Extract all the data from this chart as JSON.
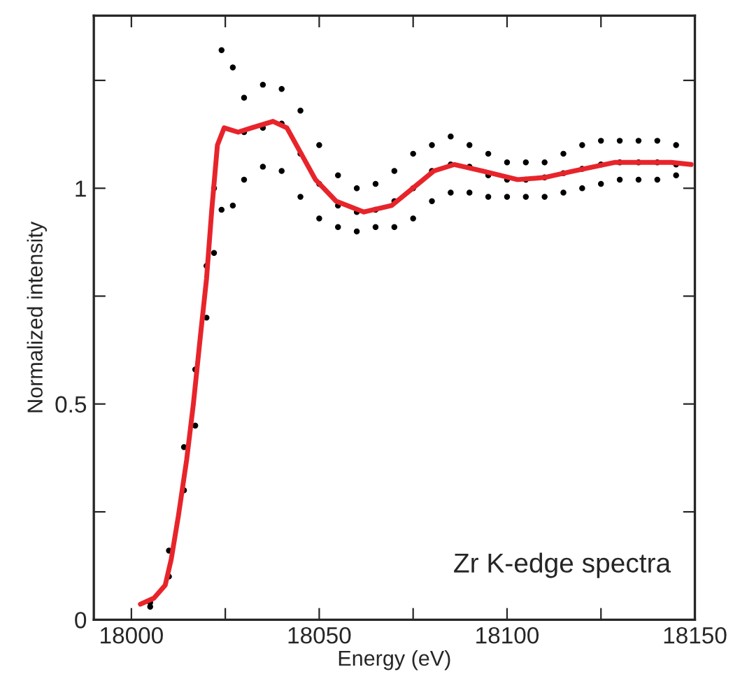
{
  "chart_data": {
    "type": "scatter",
    "xlabel": "Energy (eV)",
    "ylabel": "Normalized intensity",
    "annotations": [
      "Zr K-edge spectra"
    ],
    "xlim": [
      17990,
      18150
    ],
    "ylim": [
      0,
      1.4
    ],
    "xticks": [
      18000,
      {
        "value": 18025,
        "label": null
      },
      18050,
      {
        "value": 18075,
        "label": null
      },
      18100,
      {
        "value": 18125,
        "label": null
      },
      18150
    ],
    "yticks": [
      0,
      {
        "value": 0.25,
        "label": null
      },
      0.5,
      {
        "value": 0.75,
        "label": null
      },
      1,
      {
        "value": 1.25,
        "label": null
      }
    ],
    "grid": false,
    "legend": false,
    "series": [
      {
        "color": "#000000",
        "marker": "circle",
        "x": [
          18005,
          18005,
          18010,
          18010,
          18014,
          18014,
          18017,
          18017,
          18020,
          18020,
          18022,
          18022,
          18024,
          18024,
          18027,
          18027,
          18030,
          18030,
          18030,
          18035,
          18035,
          18035,
          18040,
          18040,
          18040,
          18045,
          18045,
          18045,
          18050,
          18050,
          18050,
          18055,
          18055,
          18055,
          18060,
          18060,
          18060,
          18065,
          18065,
          18065,
          18070,
          18070,
          18070,
          18075,
          18075,
          18075,
          18080,
          18080,
          18080,
          18085,
          18085,
          18085,
          18090,
          18090,
          18090,
          18095,
          18095,
          18095,
          18100,
          18100,
          18100,
          18105,
          18105,
          18105,
          18110,
          18110,
          18110,
          18115,
          18115,
          18115,
          18120,
          18120,
          18120,
          18125,
          18125,
          18125,
          18130,
          18130,
          18130,
          18135,
          18135,
          18135,
          18140,
          18140,
          18140,
          18145,
          18145,
          18145
        ],
        "values": [
          0.04,
          0.03,
          0.16,
          0.1,
          0.4,
          0.3,
          0.58,
          0.45,
          0.82,
          0.7,
          1.0,
          0.85,
          1.32,
          0.95,
          1.28,
          0.96,
          1.21,
          1.02,
          1.13,
          1.24,
          1.05,
          1.14,
          1.23,
          1.04,
          1.15,
          1.18,
          0.98,
          1.08,
          1.1,
          0.93,
          1.01,
          1.03,
          0.91,
          0.96,
          1.0,
          0.9,
          0.945,
          1.01,
          0.91,
          0.95,
          1.04,
          0.91,
          0.97,
          1.08,
          0.93,
          1.0,
          1.1,
          0.97,
          1.04,
          1.12,
          0.99,
          1.055,
          1.1,
          0.99,
          1.05,
          1.08,
          0.98,
          1.03,
          1.06,
          0.98,
          1.02,
          1.06,
          0.98,
          1.02,
          1.06,
          0.98,
          1.025,
          1.08,
          0.99,
          1.035,
          1.1,
          1.0,
          1.045,
          1.11,
          1.01,
          1.055,
          1.11,
          1.02,
          1.06,
          1.11,
          1.02,
          1.06,
          1.11,
          1.02,
          1.06,
          1.1,
          1.03,
          1.055
        ]
      },
      {
        "type": "line",
        "color": "#e8242b",
        "marker": "none",
        "line_style": "solid",
        "x": [
          18002.4,
          18006,
          18009,
          18010.6,
          18012.5,
          18014.7,
          18016.5,
          18018.4,
          18020,
          18021.4,
          18022.9,
          18024.7,
          18028.4,
          18032,
          18037.7,
          18041.4,
          18045.2,
          18049,
          18054.5,
          18061.9,
          18069.3,
          18074.9,
          18080.5,
          18086,
          18093.5,
          18102.8,
          18110,
          18117.7,
          18128.8,
          18143.7,
          18149
        ],
        "values": [
          0.036,
          0.05,
          0.08,
          0.14,
          0.24,
          0.37,
          0.5,
          0.66,
          0.79,
          0.95,
          1.1,
          1.14,
          1.13,
          1.14,
          1.155,
          1.14,
          1.08,
          1.02,
          0.97,
          0.945,
          0.96,
          1.0,
          1.04,
          1.055,
          1.04,
          1.02,
          1.025,
          1.04,
          1.06,
          1.06,
          1.055
        ]
      }
    ]
  }
}
